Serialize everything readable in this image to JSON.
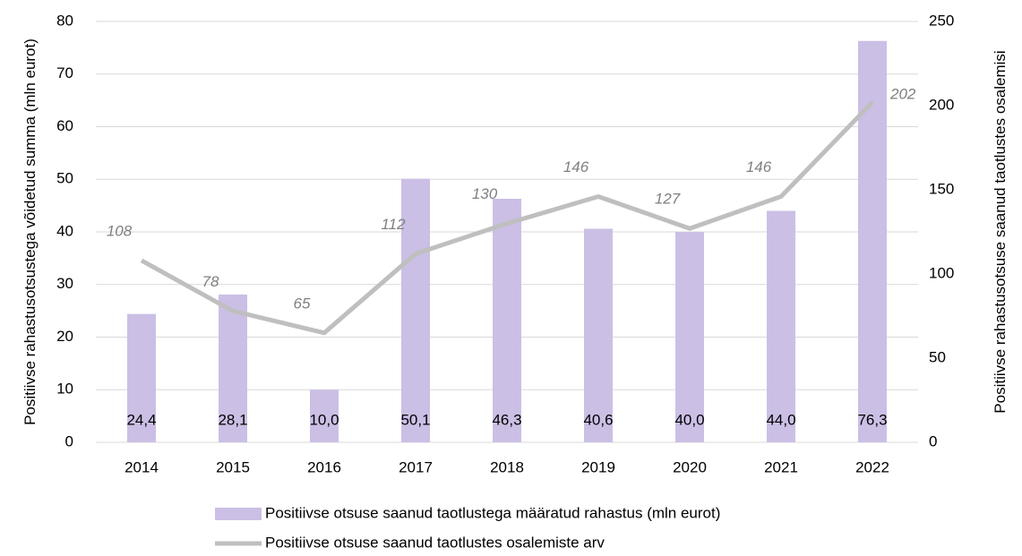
{
  "chart_data": {
    "type": "bar_line",
    "categories": [
      "2014",
      "2015",
      "2016",
      "2017",
      "2018",
      "2019",
      "2020",
      "2021",
      "2022"
    ],
    "series": [
      {
        "name": "Positiivse otsuse saanud taotlustega määratud rahastus (mln eurot)",
        "type": "bar",
        "color": "#cbbfe5",
        "values": [
          24.4,
          28.1,
          10.0,
          50.1,
          46.3,
          40.6,
          40.0,
          44.0,
          76.3
        ],
        "value_labels": [
          "24,4",
          "28,1",
          "10,0",
          "50,1",
          "46,3",
          "40,6",
          "40,0",
          "44,0",
          "76,3"
        ]
      },
      {
        "name": "Positiivse otsuse saanud taotlustes osalemiste arv",
        "type": "line",
        "color": "#bfbfbf",
        "axis": "y2",
        "values": [
          108,
          78,
          65,
          112,
          130,
          146,
          127,
          146,
          202
        ]
      }
    ],
    "y_label": "Positiivse rahastusotsustega võidetud summa (mln eurot)",
    "y2_label": "Positiivse rahastusotsuse saanud taotlustes osalemisi",
    "ylim": [
      0,
      80
    ],
    "yticks": [
      0,
      10,
      20,
      30,
      40,
      50,
      60,
      70,
      80
    ],
    "y2lim": [
      0,
      250
    ],
    "y2ticks": [
      0,
      50,
      100,
      150,
      200,
      250
    ],
    "grid": true,
    "legend": "bottom"
  }
}
